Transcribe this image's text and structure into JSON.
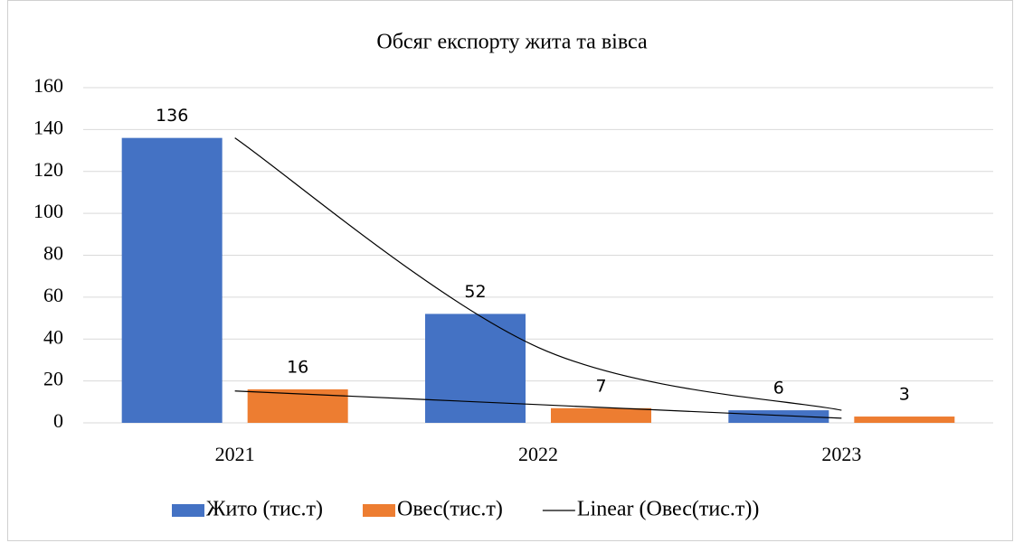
{
  "chart_data": {
    "type": "bar",
    "title": "Обсяг експорту жита та вівса",
    "categories": [
      "2021",
      "2022",
      "2023"
    ],
    "series": [
      {
        "name": "Жито (тис.т)",
        "color": "#4472c4",
        "values": [
          136,
          52,
          6
        ]
      },
      {
        "name": "Овес(тис.т)",
        "color": "#ed7d31",
        "values": [
          16,
          7,
          3
        ]
      },
      {
        "name": "Linear (Овес(тис.т))",
        "type": "line",
        "color": "#000000",
        "values": [
          15.2,
          8.7,
          2.2
        ]
      },
      {
        "type": "line",
        "color": "#000000",
        "values": [
          136,
          36,
          6
        ]
      }
    ],
    "ylim": [
      0,
      160
    ],
    "yticks": [
      0,
      20,
      40,
      60,
      80,
      100,
      120,
      140,
      160
    ],
    "grid": true,
    "legend": "bottom"
  }
}
